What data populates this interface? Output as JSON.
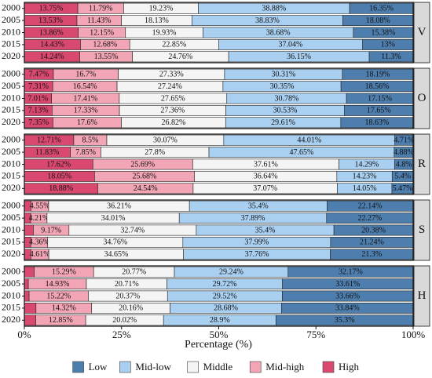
{
  "chart_data": {
    "type": "bar",
    "orientation": "horizontal",
    "stacked": true,
    "xlabel": "Percentage (%)",
    "xlim": [
      0,
      100
    ],
    "xticks": [
      {
        "value": 0,
        "label": "0%"
      },
      {
        "value": 25,
        "label": "25%"
      },
      {
        "value": 50,
        "label": "50%"
      },
      {
        "value": 75,
        "label": "75%"
      },
      {
        "value": 100,
        "label": "100%"
      }
    ],
    "categories": [
      "2000",
      "2005",
      "2010",
      "2015",
      "2020"
    ],
    "legend_position": "bottom",
    "series": [
      {
        "name": "High",
        "color": "#d9496f"
      },
      {
        "name": "Mid-high",
        "color": "#f2a5b5"
      },
      {
        "name": "Middle",
        "color": "#f4f4f4"
      },
      {
        "name": "Mid-low",
        "color": "#a9cff1"
      },
      {
        "name": "Low",
        "color": "#4d7eae"
      }
    ],
    "facets": [
      {
        "label": "V",
        "values": [
          [
            13.75,
            13.53,
            13.86,
            14.43,
            14.24
          ],
          [
            11.79,
            11.43,
            12.15,
            12.68,
            13.55
          ],
          [
            19.23,
            18.13,
            19.93,
            22.85,
            24.76
          ],
          [
            38.88,
            38.83,
            38.68,
            37.04,
            36.15
          ],
          [
            16.35,
            18.08,
            15.38,
            13,
            11.3
          ]
        ],
        "value_labels": [
          [
            "13.75%",
            "13.53%",
            "13.86%",
            "14.43%",
            "14.24%"
          ],
          [
            "11.79%",
            "11.43%",
            "12.15%",
            "12.68%",
            "13.55%"
          ],
          [
            "19.23%",
            "18.13%",
            "19.93%",
            "22.85%",
            "24.76%"
          ],
          [
            "38.88%",
            "38.83%",
            "38.68%",
            "37.04%",
            "36.15%"
          ],
          [
            "16.35%",
            "18.08%",
            "15.38%",
            "13%",
            "11.3%"
          ]
        ]
      },
      {
        "label": "O",
        "values": [
          [
            7.47,
            7.31,
            7.01,
            7.13,
            7.35
          ],
          [
            16.7,
            16.54,
            17.41,
            17.33,
            17.6
          ],
          [
            27.33,
            27.24,
            27.65,
            27.36,
            26.82
          ],
          [
            30.31,
            30.35,
            30.78,
            30.53,
            29.61
          ],
          [
            18.19,
            18.56,
            17.15,
            17.65,
            18.63
          ]
        ],
        "value_labels": [
          [
            "7.47%",
            "7.31%",
            "7.01%",
            "7.13%",
            "7.35%"
          ],
          [
            "16.7%",
            "16.54%",
            "17.41%",
            "17.33%",
            "17.6%"
          ],
          [
            "27.33%",
            "27.24%",
            "27.65%",
            "27.36%",
            "26.82%"
          ],
          [
            "30.31%",
            "30.35%",
            "30.78%",
            "30.53%",
            "29.61%"
          ],
          [
            "18.19%",
            "18.56%",
            "17.15%",
            "17.65%",
            "18.63%"
          ]
        ]
      },
      {
        "label": "R",
        "values": [
          [
            12.71,
            11.83,
            17.62,
            18.05,
            18.88
          ],
          [
            8.5,
            7.85,
            25.69,
            25.68,
            24.54
          ],
          [
            30.07,
            27.8,
            37.61,
            36.64,
            37.07
          ],
          [
            44.01,
            47.65,
            14.29,
            14.23,
            14.05
          ],
          [
            4.71,
            4.88,
            4.8,
            5.4,
            5.47
          ]
        ],
        "value_labels": [
          [
            "12.71%",
            "11.83%",
            "17.62%",
            "18.05%",
            "18.88%"
          ],
          [
            "8.5%",
            "7.85%",
            "25.69%",
            "25.68%",
            "24.54%"
          ],
          [
            "30.07%",
            "27.8%",
            "37.61%",
            "36.64%",
            "37.07%"
          ],
          [
            "44.01%",
            "47.65%",
            "14.29%",
            "14.23%",
            "14.05%"
          ],
          [
            "4.71%",
            "4.88%",
            "4.8%",
            "5.4%",
            "5.47%"
          ]
        ]
      },
      {
        "label": "S",
        "values": [
          [
            1.7,
            1.62,
            2.31,
            1.65,
            1.68
          ],
          [
            4.55,
            4.21,
            9.17,
            4.36,
            4.61
          ],
          [
            36.21,
            34.01,
            32.74,
            34.76,
            34.65
          ],
          [
            35.4,
            37.89,
            35.4,
            37.99,
            37.76
          ],
          [
            22.14,
            22.27,
            20.38,
            21.24,
            21.3
          ]
        ],
        "value_labels": [
          [
            null,
            null,
            null,
            null,
            null
          ],
          [
            "4.55%",
            "4.21%",
            "9.17%",
            "4.36%",
            "4.61%"
          ],
          [
            "36.21%",
            "34.01%",
            "32.74%",
            "34.76%",
            "34.65%"
          ],
          [
            "35.4%",
            "37.89%",
            "35.4%",
            "37.99%",
            "37.76%"
          ],
          [
            "22.14%",
            "22.27%",
            "20.38%",
            "21.24%",
            "21.3%"
          ]
        ]
      },
      {
        "label": "H",
        "values": [
          [
            2.53,
            1.03,
            1.23,
            3.0,
            2.93
          ],
          [
            15.29,
            14.93,
            15.22,
            14.32,
            12.85
          ],
          [
            20.77,
            20.71,
            20.37,
            20.16,
            20.02
          ],
          [
            29.24,
            29.72,
            29.52,
            28.68,
            28.9
          ],
          [
            32.17,
            33.61,
            33.66,
            33.84,
            35.3
          ]
        ],
        "value_labels": [
          [
            null,
            null,
            null,
            null,
            null
          ],
          [
            "15.29%",
            "14.93%",
            "15.22%",
            "14.32%",
            "12.85%"
          ],
          [
            "20.77%",
            "20.71%",
            "20.37%",
            "20.16%",
            "20.02%"
          ],
          [
            "29.24%",
            "29.72%",
            "29.52%",
            "28.68%",
            "28.9%"
          ],
          [
            "32.17%",
            "33.61%",
            "33.66%",
            "33.84%",
            "35.3%"
          ]
        ]
      }
    ]
  }
}
